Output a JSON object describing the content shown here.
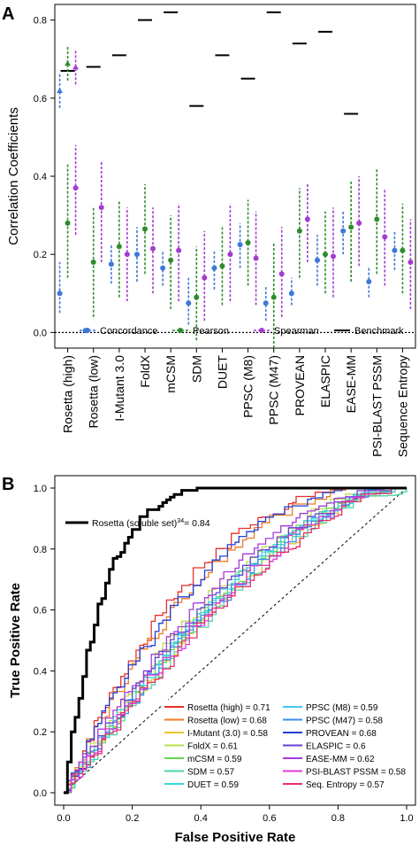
{
  "panel_a": {
    "letter": "A"
  },
  "panel_b": {
    "letter": "B"
  },
  "chart_data": [
    {
      "type": "scatter",
      "subtype": "point-range-with-benchmark",
      "ylabel": "Correlation Coefficients",
      "ylim": [
        -0.04,
        0.84
      ],
      "yticks": [
        0.0,
        0.2,
        0.4,
        0.6,
        0.8
      ],
      "zero_line": "dotted",
      "grid": false,
      "legend_position": "bottom",
      "categories": [
        "Rosetta (high)",
        "Rosetta (low)",
        "I-Mutant 3.0",
        "FoldX",
        "mCSM",
        "SDM",
        "DUET",
        "PPSC (M8)",
        "PPSC (M47)",
        "PROVEAN",
        "ELASPIC",
        "EASE-MM",
        "PSI-BLAST PSSM",
        "Sequence Entropy"
      ],
      "series": [
        {
          "name": "Concordance",
          "color": "#3c78d8",
          "line": "dashed",
          "values": [
            0.1,
            0.005,
            0.175,
            0.2,
            0.165,
            0.075,
            0.165,
            0.225,
            0.075,
            0.1,
            0.185,
            0.26,
            0.13,
            0.21
          ],
          "low": [
            0.05,
            0.0,
            0.125,
            0.13,
            0.12,
            0.02,
            0.11,
            0.165,
            0.03,
            0.07,
            0.12,
            0.2,
            0.09,
            0.16
          ],
          "high": [
            0.18,
            0.01,
            0.225,
            0.27,
            0.21,
            0.14,
            0.21,
            0.28,
            0.12,
            0.14,
            0.25,
            0.31,
            0.17,
            0.26
          ]
        },
        {
          "name": "Pearson",
          "color": "#2e8b2e",
          "line": "dashed",
          "values": [
            0.28,
            0.18,
            0.22,
            0.265,
            0.185,
            0.09,
            0.17,
            0.23,
            0.09,
            0.26,
            0.2,
            0.27,
            0.29,
            0.21
          ],
          "low": [
            0.14,
            0.04,
            0.09,
            0.15,
            0.06,
            -0.02,
            0.07,
            0.12,
            -0.04,
            0.14,
            0.1,
            0.13,
            0.15,
            0.1
          ],
          "high": [
            0.43,
            0.32,
            0.34,
            0.38,
            0.3,
            0.22,
            0.27,
            0.34,
            0.23,
            0.37,
            0.31,
            0.39,
            0.42,
            0.33
          ]
        },
        {
          "name": "Spearman",
          "color": "#a33bd1",
          "line": "dashed",
          "values": [
            0.37,
            0.32,
            0.2,
            0.215,
            0.21,
            0.14,
            0.2,
            0.19,
            0.15,
            0.29,
            0.195,
            0.28,
            0.245,
            0.18
          ],
          "low": [
            0.25,
            0.18,
            0.08,
            0.1,
            0.08,
            0.03,
            0.08,
            0.07,
            0.04,
            0.18,
            0.09,
            0.17,
            0.12,
            0.06
          ],
          "high": [
            0.48,
            0.44,
            0.32,
            0.32,
            0.33,
            0.26,
            0.33,
            0.31,
            0.27,
            0.38,
            0.32,
            0.4,
            0.37,
            0.29
          ]
        },
        {
          "name": "Benchmark",
          "color": "#000000",
          "line": "solid",
          "values": [
            0.67,
            0.68,
            0.71,
            0.8,
            0.82,
            0.58,
            0.71,
            0.65,
            0.82,
            0.74,
            0.77,
            0.56,
            null,
            null
          ]
        }
      ],
      "highlight": {
        "category": "Rosetta (high)",
        "concordance": 0.62,
        "pearson": 0.69,
        "spearman": 0.68
      }
    },
    {
      "type": "line",
      "subtype": "roc",
      "xlabel": "False Positive Rate",
      "ylabel": "True Positive Rate",
      "xlim": [
        0,
        1
      ],
      "ylim": [
        0,
        1
      ],
      "xticks": [
        0.0,
        0.2,
        0.4,
        0.6,
        0.8,
        1.0
      ],
      "yticks": [
        0.0,
        0.2,
        0.4,
        0.6,
        0.8,
        1.0
      ],
      "diagonal": "dashed",
      "legend_position": "bottom-right",
      "reference": {
        "name": "Rosetta (soluble set)",
        "superscript": "34",
        "auc_text": "= 0.84",
        "color": "#000000"
      },
      "series": [
        {
          "name": "Rosetta (high)",
          "label": "Rosetta (high) = 0.71",
          "color": "#e8302c"
        },
        {
          "name": "Rosetta (low)",
          "label": "Rosetta (low) = 0.68",
          "color": "#f07a24"
        },
        {
          "name": "I-Mutant (3.0)",
          "label": "I-Mutant (3.0) = 0.58",
          "color": "#e6c62e"
        },
        {
          "name": "FoldX",
          "label": "FoldX = 0.61",
          "color": "#b6e04a"
        },
        {
          "name": "mCSM",
          "label": "mCSM = 0.59",
          "color": "#63d64d"
        },
        {
          "name": "SDM",
          "label": "SDM = 0.57",
          "color": "#4fd6a3"
        },
        {
          "name": "DUET",
          "label": "DUET = 0.59",
          "color": "#35d8d8"
        },
        {
          "name": "PPSC (M8)",
          "label": "PPSC (M8) = 0.59",
          "color": "#42c8f0"
        },
        {
          "name": "PPSC (M47)",
          "label": "PPSC (M47) = 0.58",
          "color": "#3b8cf0"
        },
        {
          "name": "PROVEAN",
          "label": "PROVEAN = 0.68",
          "color": "#1f3fd6"
        },
        {
          "name": "ELASPIC",
          "label": "ELASPIC = 0.6",
          "color": "#6a3fd6"
        },
        {
          "name": "EASE-MM",
          "label": "EASE-MM = 0.62",
          "color": "#a53ad8"
        },
        {
          "name": "PSI-BLAST PSSM",
          "label": "PSI-BLAST PSSM = 0.58",
          "color": "#e23ad8"
        },
        {
          "name": "Seq. Entropy",
          "label": "Seq. Entropy = 0.57",
          "color": "#e8306a"
        }
      ]
    }
  ]
}
